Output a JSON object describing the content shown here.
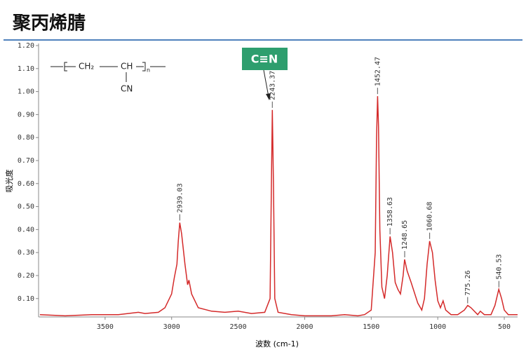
{
  "title": "聚丙烯腈",
  "chart_data": {
    "type": "line",
    "x_label": "波数 (cm-1)",
    "y_label": "吸光度",
    "xlim": [
      4000,
      400
    ],
    "ylim": [
      0.02,
      1.2
    ],
    "xticks": [
      3500,
      3000,
      2500,
      2000,
      1500,
      1000,
      500
    ],
    "yticks": [
      {
        "value": 0.1,
        "label": "0.10"
      },
      {
        "value": 0.2,
        "label": "0.20"
      },
      {
        "value": 0.3,
        "label": "0.30"
      },
      {
        "value": 0.4,
        "label": "0.40"
      },
      {
        "value": 0.5,
        "label": "0.50"
      },
      {
        "value": 0.6,
        "label": "0.60"
      },
      {
        "value": 0.7,
        "label": "0.70"
      },
      {
        "value": 0.8,
        "label": "0.80"
      },
      {
        "value": 0.9,
        "label": "0.90"
      },
      {
        "value": 1.0,
        "label": "1.00"
      },
      {
        "value": 1.1,
        "label": "1.10"
      },
      {
        "value": 1.2,
        "label": "1.20"
      }
    ],
    "x": [
      3990,
      3800,
      3600,
      3400,
      3250,
      3200,
      3100,
      3050,
      3000,
      2980,
      2960,
      2950,
      2939,
      2925,
      2900,
      2880,
      2870,
      2850,
      2800,
      2700,
      2600,
      2500,
      2400,
      2300,
      2260,
      2250,
      2243,
      2235,
      2225,
      2200,
      2100,
      2000,
      1900,
      1800,
      1700,
      1600,
      1550,
      1500,
      1470,
      1460,
      1452,
      1445,
      1435,
      1420,
      1400,
      1380,
      1358,
      1340,
      1320,
      1300,
      1280,
      1260,
      1249,
      1230,
      1200,
      1150,
      1120,
      1100,
      1080,
      1061,
      1040,
      1020,
      1000,
      980,
      960,
      940,
      900,
      850,
      800,
      775,
      750,
      700,
      680,
      650,
      600,
      570,
      541,
      520,
      500,
      470,
      430,
      400
    ],
    "series": [
      {
        "color": "#d42a2a",
        "values": [
          0.03,
          0.025,
          0.03,
          0.03,
          0.04,
          0.035,
          0.04,
          0.06,
          0.12,
          0.19,
          0.25,
          0.35,
          0.43,
          0.38,
          0.25,
          0.16,
          0.18,
          0.12,
          0.06,
          0.045,
          0.04,
          0.045,
          0.035,
          0.04,
          0.1,
          0.6,
          0.92,
          0.6,
          0.1,
          0.04,
          0.03,
          0.025,
          0.025,
          0.025,
          0.03,
          0.025,
          0.03,
          0.05,
          0.3,
          0.8,
          0.98,
          0.85,
          0.4,
          0.15,
          0.1,
          0.2,
          0.37,
          0.3,
          0.17,
          0.14,
          0.12,
          0.2,
          0.27,
          0.22,
          0.17,
          0.08,
          0.05,
          0.1,
          0.25,
          0.35,
          0.3,
          0.18,
          0.09,
          0.06,
          0.09,
          0.05,
          0.03,
          0.03,
          0.05,
          0.07,
          0.06,
          0.03,
          0.045,
          0.03,
          0.03,
          0.07,
          0.14,
          0.1,
          0.05,
          0.03,
          0.03,
          0.03
        ]
      }
    ],
    "annotations": [
      {
        "text": "2939.03",
        "x": 2939.03,
        "y": 0.43
      },
      {
        "text": "2243.37",
        "x": 2243.37,
        "y": 0.92
      },
      {
        "text": "1452.47",
        "x": 1452.47,
        "y": 0.98
      },
      {
        "text": "1358.63",
        "x": 1358.63,
        "y": 0.37
      },
      {
        "text": "1248.65",
        "x": 1248.65,
        "y": 0.27
      },
      {
        "text": "1060.68",
        "x": 1060.68,
        "y": 0.35
      },
      {
        "text": "775.26",
        "x": 775.26,
        "y": 0.07
      },
      {
        "text": "540.53",
        "x": 540.53,
        "y": 0.14
      }
    ],
    "callout": "C≡N",
    "structure": {
      "repeat": "CH₂",
      "group": "CH",
      "subscript": "n",
      "substituent": "CN"
    }
  }
}
